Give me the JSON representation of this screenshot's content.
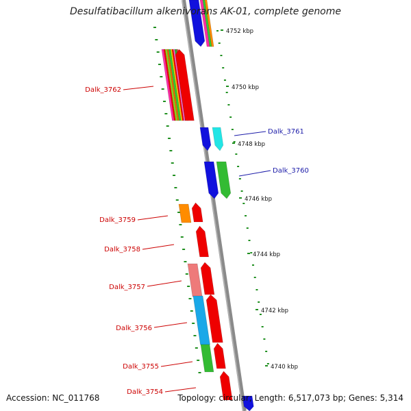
{
  "title": "Desulfatibacillum alkenivorans AK-01, complete genome",
  "accession": "Accession: NC_011768",
  "summary": "Topology: circular; Length: 6,517,073 bp; Genes: 5,314",
  "colors": {
    "backbone": "#8a8a8a",
    "tick": "#1f8f1f",
    "label_red": "#cc0000",
    "label_blue": "#1a1aa8"
  },
  "scale_labels": [
    "4752 kbp",
    "4750 kbp",
    "4748 kbp",
    "4746 kbp",
    "4744 kbp",
    "4742 kbp",
    "4740 kbp"
  ],
  "genes": [
    {
      "name": "Dalk_3762",
      "strand": "reverse",
      "colors": [
        "#ff2da6",
        "#ff0000",
        "#8fd01a",
        "#ff6a00",
        "#33cc33",
        "#ffd200",
        "#ff0000",
        "#ff66cc",
        "#33aa33",
        "#e05050"
      ]
    },
    {
      "name": "Dalk_3761",
      "strand": "forward",
      "colors": [
        "#1111dd",
        "#22e5e5"
      ]
    },
    {
      "name": "Dalk_3760",
      "strand": "forward",
      "colors": [
        "#1111dd",
        "#33bb33"
      ]
    },
    {
      "name": "Dalk_3759",
      "strand": "reverse",
      "colors": [
        "#ff8c00",
        "#ee0000"
      ]
    },
    {
      "name": "Dalk_3758",
      "strand": "reverse",
      "colors": [
        "#ee0000"
      ]
    },
    {
      "name": "Dalk_3757",
      "strand": "reverse",
      "colors": [
        "#ee7a7a",
        "#ee0000"
      ]
    },
    {
      "name": "Dalk_3756",
      "strand": "reverse",
      "colors": [
        "#1aa8e8",
        "#ee0000"
      ]
    },
    {
      "name": "Dalk_3755",
      "strand": "reverse",
      "colors": [
        "#33bb33",
        "#ee0000"
      ]
    },
    {
      "name": "Dalk_3754",
      "strand": "reverse",
      "colors": [
        "#ee0000"
      ]
    }
  ],
  "top_partial_colors": [
    "#1111dd",
    "#ff2da6",
    "#33cc33",
    "#ff8c00"
  ]
}
